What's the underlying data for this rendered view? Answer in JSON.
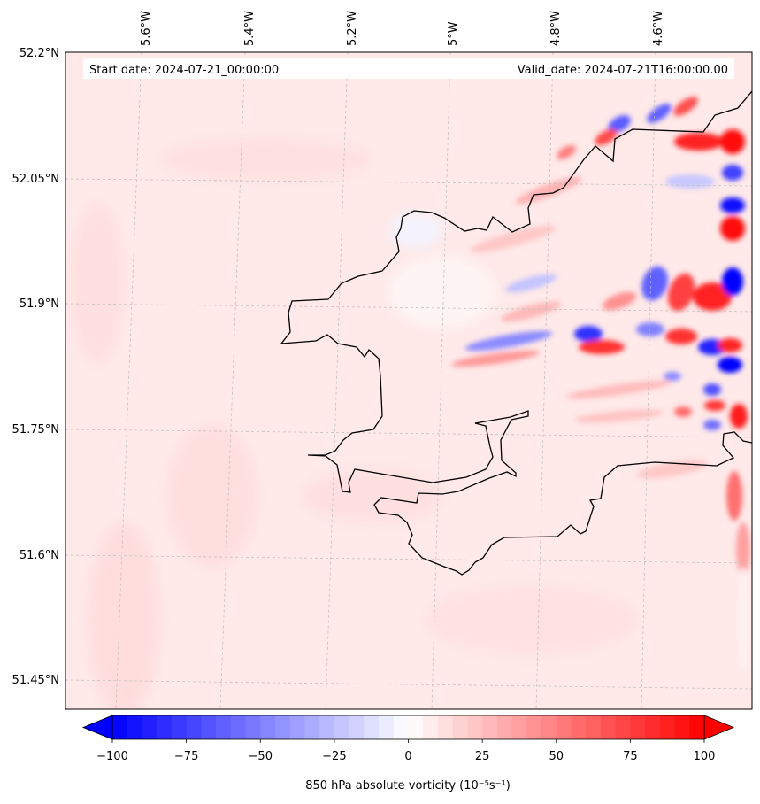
{
  "header": {
    "start_date": "Start date: 2024-07-21_00:00:00",
    "valid_date": "Valid_date: 2024-07-21T16:00:00.00"
  },
  "lon_labels": [
    "5.6°W",
    "5.4°W",
    "5.2°W",
    "5°W",
    "4.8°W",
    "4.6°W"
  ],
  "lat_labels": [
    "52.2°N",
    "52.05°N",
    "51.9°N",
    "51.75°N",
    "51.6°N",
    "51.45°N"
  ],
  "colorbar": {
    "tick_labels": [
      "−100",
      "−75",
      "−50",
      "−25",
      "0",
      "25",
      "50",
      "75",
      "100"
    ],
    "label": "850 hPa absolute vorticity (10⁻⁵s⁻¹)",
    "min_color": "#0000ff",
    "mid_color": "#ffffff",
    "max_color": "#ff0000",
    "extend": "both"
  },
  "colors": {
    "background_field": "#ffe9e9",
    "coastline": "#000000",
    "gridline": "#bbbbbb"
  }
}
